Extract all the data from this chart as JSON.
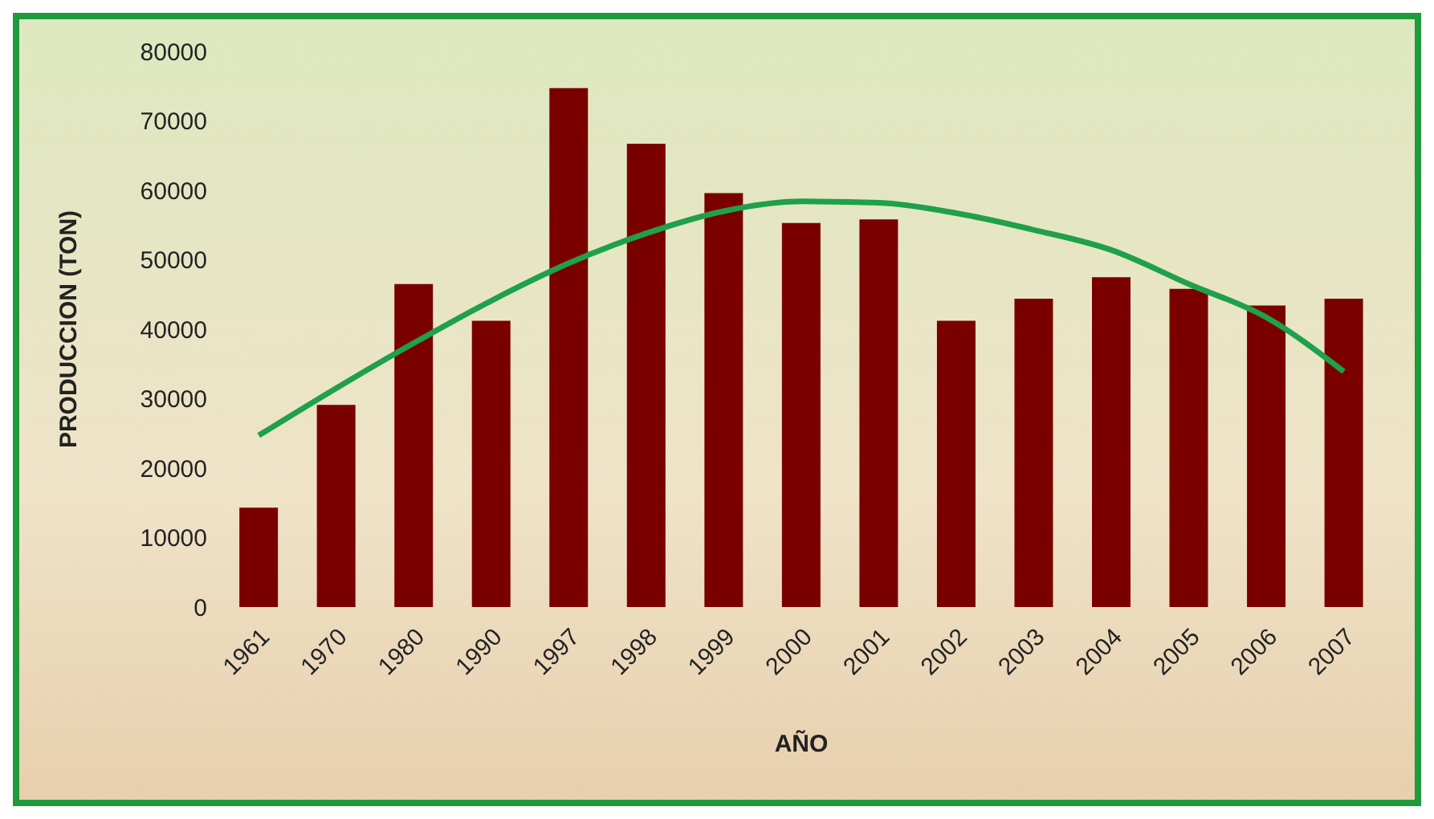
{
  "chart_data": {
    "type": "bar",
    "xlabel": "AÑO",
    "ylabel": "PRODUCCION (TON)",
    "categories": [
      "1961",
      "1970",
      "1980",
      "1990",
      "1997",
      "1998",
      "1999",
      "2000",
      "2001",
      "2002",
      "2003",
      "2004",
      "2005",
      "2006",
      "2007"
    ],
    "series": [
      {
        "color": "#7a0000",
        "values": [
          14300,
          29100,
          46500,
          41200,
          74700,
          66700,
          59600,
          55300,
          55800,
          41200,
          44400,
          47500,
          45800,
          43400,
          44400
        ]
      },
      {
        "type": "line",
        "color": "#1fa04a",
        "values": [
          24700,
          31500,
          38000,
          44100,
          49500,
          53800,
          57000,
          58400,
          58200,
          56700,
          54300,
          51400,
          46500,
          41700,
          33900
        ]
      }
    ],
    "ylim": [
      0,
      80000
    ],
    "yticks": [
      0,
      10000,
      20000,
      30000,
      40000,
      50000,
      60000,
      70000,
      80000
    ],
    "grid": false,
    "legend": false,
    "marker": "none",
    "line_style": "solid"
  }
}
